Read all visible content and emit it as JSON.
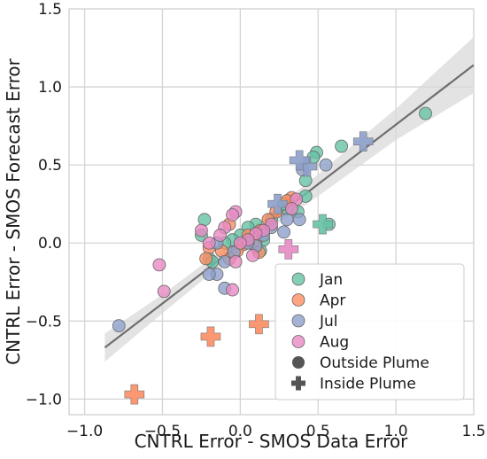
{
  "chart_data": {
    "type": "scatter",
    "xlabel": "CNTRL Error - SMOS Data Error",
    "ylabel": "CNTRL Error - SMOS Forecast Error",
    "xlim": [
      -1.1,
      1.5
    ],
    "ylim": [
      -1.1,
      1.5
    ],
    "xticks": [
      -1.0,
      -0.5,
      0.0,
      0.5,
      1.0,
      1.5
    ],
    "yticks": [
      -1.0,
      -0.5,
      0.0,
      0.5,
      1.0,
      1.5
    ],
    "xtick_labels": [
      "−1.0",
      "−0.5",
      "0.0",
      "0.5",
      "1.0",
      "1.5"
    ],
    "ytick_labels": [
      "−1.0",
      "−0.5",
      "0.0",
      "0.5",
      "1.0",
      "1.5"
    ],
    "grid": true,
    "legend_position": "lower-right",
    "colors": {
      "Jan": "#66c2a5",
      "Apr": "#fc8d62",
      "Jul": "#8da0cb",
      "Aug": "#e78ac3",
      "marker_shape": "#555555",
      "regression_line": "#6e6e6e",
      "confidence_band": "#d9d9d9"
    },
    "legend": {
      "series": [
        "Jan",
        "Apr",
        "Jul",
        "Aug"
      ],
      "shapes": [
        "Outside Plume",
        "Inside Plume"
      ]
    },
    "regression": {
      "x": [
        -0.87,
        1.5
      ],
      "y": [
        -0.67,
        1.14
      ]
    },
    "confidence_band": {
      "x": [
        -0.87,
        -0.5,
        0.0,
        0.5,
        1.0,
        1.5
      ],
      "upper": [
        -0.58,
        -0.33,
        0.04,
        0.44,
        0.86,
        1.32
      ],
      "lower": [
        -0.76,
        -0.45,
        -0.04,
        0.3,
        0.66,
        0.96
      ]
    },
    "series": [
      {
        "name": "Jan",
        "outside_plume": [
          [
            1.19,
            0.83
          ],
          [
            0.65,
            0.62
          ],
          [
            0.49,
            0.58
          ],
          [
            0.47,
            0.55
          ],
          [
            0.42,
            0.4
          ],
          [
            0.42,
            0.3
          ],
          [
            0.37,
            0.2
          ],
          [
            0.3,
            0.22
          ],
          [
            0.28,
            0.25
          ],
          [
            0.2,
            0.15
          ],
          [
            0.1,
            0.12
          ],
          [
            0.05,
            0.1
          ],
          [
            0.0,
            0.05
          ],
          [
            -0.05,
            0.02
          ],
          [
            -0.1,
            0.0
          ],
          [
            -0.2,
            -0.1
          ],
          [
            -0.25,
            0.05
          ],
          [
            -0.18,
            -0.12
          ],
          [
            -0.23,
            0.15
          ],
          [
            0.13,
            -0.05
          ],
          [
            0.15,
            0.02
          ],
          [
            0.57,
            0.12
          ]
        ],
        "inside_plume": [
          [
            0.53,
            0.12
          ]
        ]
      },
      {
        "name": "Apr",
        "outside_plume": [
          [
            0.33,
            0.29
          ],
          [
            0.3,
            0.27
          ],
          [
            0.23,
            0.2
          ],
          [
            0.18,
            0.15
          ],
          [
            0.13,
            0.08
          ],
          [
            0.1,
            0.0
          ],
          [
            0.05,
            0.05
          ],
          [
            0.02,
            -0.01
          ],
          [
            -0.02,
            -0.05
          ],
          [
            -0.07,
            -0.1
          ],
          [
            -0.12,
            -0.05
          ],
          [
            -0.2,
            -0.03
          ],
          [
            -0.22,
            -0.1
          ],
          [
            -0.07,
            0.12
          ],
          [
            0.12,
            -0.06
          ]
        ],
        "inside_plume": [
          [
            -0.19,
            -0.6
          ],
          [
            0.12,
            -0.52
          ],
          [
            -0.68,
            -0.97
          ]
        ]
      },
      {
        "name": "Jul",
        "outside_plume": [
          [
            0.55,
            0.5
          ],
          [
            0.4,
            0.47
          ],
          [
            0.38,
            0.15
          ],
          [
            0.3,
            0.15
          ],
          [
            0.2,
            0.1
          ],
          [
            0.15,
            0.05
          ],
          [
            0.1,
            -0.02
          ],
          [
            0.05,
            0.0
          ],
          [
            -0.04,
            -0.06
          ],
          [
            -0.1,
            -0.12
          ],
          [
            -0.15,
            -0.2
          ],
          [
            -0.2,
            -0.2
          ],
          [
            -0.1,
            -0.29
          ],
          [
            -0.15,
            0.0
          ],
          [
            0.28,
            0.07
          ],
          [
            -0.78,
            -0.53
          ]
        ],
        "inside_plume": [
          [
            0.79,
            0.65
          ],
          [
            0.43,
            0.49
          ],
          [
            0.38,
            0.53
          ],
          [
            0.24,
            0.25
          ]
        ]
      },
      {
        "name": "Aug",
        "outside_plume": [
          [
            0.36,
            0.28
          ],
          [
            0.33,
            0.22
          ],
          [
            0.2,
            0.12
          ],
          [
            0.15,
            0.08
          ],
          [
            0.1,
            0.06
          ],
          [
            0.05,
            0.02
          ],
          [
            0.0,
            0.0
          ],
          [
            -0.03,
            0.2
          ],
          [
            -0.05,
            0.18
          ],
          [
            -0.1,
            0.1
          ],
          [
            -0.13,
            0.05
          ],
          [
            -0.2,
            0.0
          ],
          [
            -0.25,
            0.08
          ],
          [
            -0.03,
            -0.12
          ],
          [
            -0.05,
            -0.3
          ],
          [
            -0.52,
            -0.14
          ],
          [
            -0.49,
            -0.31
          ],
          [
            0.08,
            -0.08
          ]
        ],
        "inside_plume": [
          [
            0.31,
            -0.04
          ]
        ]
      }
    ]
  }
}
